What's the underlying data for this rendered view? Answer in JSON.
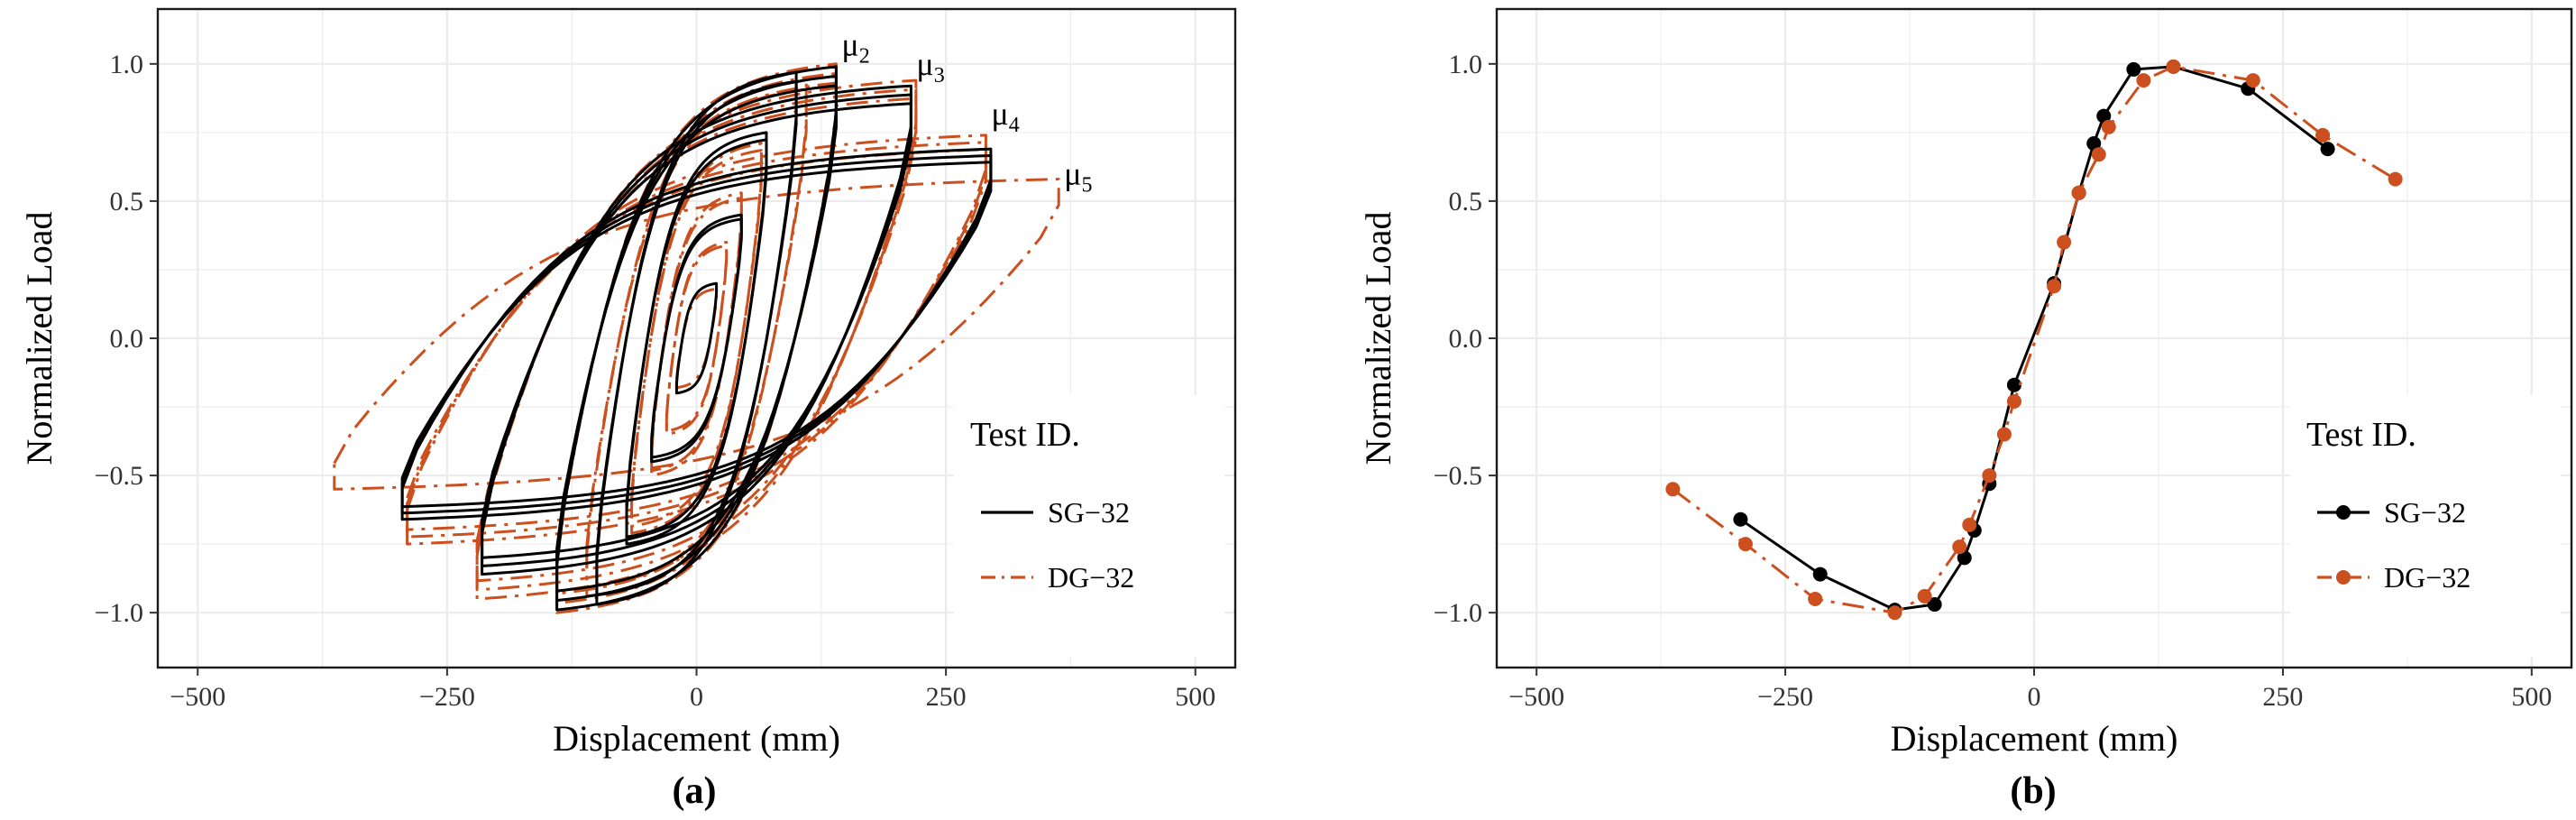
{
  "colors": {
    "sg": "#000000",
    "dg": "#cc4f1e",
    "grid": "#ebebeb",
    "panel_border": "#1a1a1a",
    "tick": "#333333"
  },
  "chart_data": [
    {
      "type": "line",
      "panel_label": "(a)",
      "xlabel": "Displacement (mm)",
      "ylabel": "Normalized Load",
      "xlim": [
        -540,
        540
      ],
      "ylim": [
        -1.2,
        1.2
      ],
      "xticks": [
        -500,
        -250,
        0,
        250,
        500
      ],
      "xtick_labels": [
        "−500",
        "−250",
        "0",
        "250",
        "500"
      ],
      "yticks": [
        -1.0,
        -0.5,
        0.0,
        0.5,
        1.0
      ],
      "ytick_labels": [
        "−1.0",
        "−0.5",
        "0.0",
        "0.5",
        "1.0"
      ],
      "grid": true,
      "legend": {
        "title": "Test ID.",
        "position": "bottom-right",
        "entries": [
          "SG−32",
          "DG−32"
        ]
      },
      "annotations": [
        {
          "base": "μ",
          "sub": "2",
          "x": 140,
          "y": 1.03
        },
        {
          "base": "μ",
          "sub": "3",
          "x": 215,
          "y": 0.96
        },
        {
          "base": "μ",
          "sub": "4",
          "x": 290,
          "y": 0.78
        },
        {
          "base": "μ",
          "sub": "5",
          "x": 363,
          "y": 0.56
        }
      ],
      "series": [
        {
          "name": "SG−32",
          "style": "solid",
          "cycles": [
            {
              "xmax": 20,
              "ymax": 0.2,
              "xmin": -20,
              "ymin": -0.2,
              "reps": 1
            },
            {
              "xmax": 45,
              "ymax": 0.45,
              "xmin": -45,
              "ymin": -0.45,
              "reps": 2
            },
            {
              "xmax": 70,
              "ymax": 0.75,
              "xmin": -70,
              "ymin": -0.75,
              "reps": 2
            },
            {
              "xmax": 100,
              "ymax": 0.97,
              "xmin": -100,
              "ymin": -0.97,
              "reps": 2
            },
            {
              "xmax": 140,
              "ymax": 0.99,
              "xmin": -140,
              "ymin": -0.99,
              "reps": 3
            },
            {
              "xmax": 215,
              "ymax": 0.92,
              "xmin": -215,
              "ymin": -0.86,
              "reps": 3
            },
            {
              "xmax": 295,
              "ymax": 0.69,
              "xmin": -295,
              "ymin": -0.66,
              "reps": 3
            }
          ]
        },
        {
          "name": "DG−32",
          "style": "dashdot",
          "cycles": [
            {
              "xmax": 20,
              "ymax": 0.18,
              "xmin": -20,
              "ymin": -0.18,
              "reps": 1
            },
            {
              "xmax": 30,
              "ymax": 0.35,
              "xmin": -30,
              "ymin": -0.35,
              "reps": 2
            },
            {
              "xmax": 45,
              "ymax": 0.53,
              "xmin": -45,
              "ymin": -0.5,
              "reps": 2
            },
            {
              "xmax": 65,
              "ymax": 0.71,
              "xmin": -65,
              "ymin": -0.71,
              "reps": 2
            },
            {
              "xmax": 110,
              "ymax": 0.94,
              "xmin": -110,
              "ymin": -0.94,
              "reps": 2
            },
            {
              "xmax": 140,
              "ymax": 1.0,
              "xmin": -140,
              "ymin": -1.0,
              "reps": 3
            },
            {
              "xmax": 220,
              "ymax": 0.94,
              "xmin": -220,
              "ymin": -0.95,
              "reps": 3
            },
            {
              "xmax": 290,
              "ymax": 0.74,
              "xmin": -290,
              "ymin": -0.75,
              "reps": 3
            },
            {
              "xmax": 363,
              "ymax": 0.58,
              "xmin": -363,
              "ymin": -0.55,
              "reps": 1
            }
          ]
        }
      ]
    },
    {
      "type": "line",
      "panel_label": "(b)",
      "xlabel": "Displacement (mm)",
      "ylabel": "Normalized Load",
      "xlim": [
        -540,
        540
      ],
      "ylim": [
        -1.2,
        1.2
      ],
      "xticks": [
        -500,
        -250,
        0,
        250,
        500
      ],
      "xtick_labels": [
        "−500",
        "−250",
        "0",
        "250",
        "500"
      ],
      "yticks": [
        -1.0,
        -0.5,
        0.0,
        0.5,
        1.0
      ],
      "ytick_labels": [
        "−1.0",
        "−0.5",
        "0.0",
        "0.5",
        "1.0"
      ],
      "grid": true,
      "legend": {
        "title": "Test ID.",
        "position": "bottom-right",
        "entries": [
          "SG−32",
          "DG−32"
        ]
      },
      "series": [
        {
          "name": "SG−32",
          "style": "solid",
          "x": [
            -295,
            -215,
            -140,
            -100,
            -70,
            -60,
            -45,
            -20,
            20,
            45,
            60,
            70,
            100,
            140,
            215,
            295
          ],
          "y": [
            -0.66,
            -0.86,
            -0.99,
            -0.97,
            -0.8,
            -0.7,
            -0.53,
            -0.17,
            0.2,
            0.53,
            0.71,
            0.81,
            0.98,
            0.99,
            0.91,
            0.69
          ]
        },
        {
          "name": "DG−32",
          "style": "dashdot",
          "x": [
            -363,
            -290,
            -220,
            -140,
            -110,
            -75,
            -65,
            -45,
            -30,
            -20,
            20,
            30,
            45,
            65,
            75,
            110,
            140,
            220,
            290,
            363
          ],
          "y": [
            -0.55,
            -0.75,
            -0.95,
            -1.0,
            -0.94,
            -0.76,
            -0.68,
            -0.5,
            -0.35,
            -0.23,
            0.19,
            0.35,
            0.53,
            0.67,
            0.77,
            0.94,
            0.99,
            0.94,
            0.74,
            0.58
          ]
        }
      ]
    }
  ]
}
